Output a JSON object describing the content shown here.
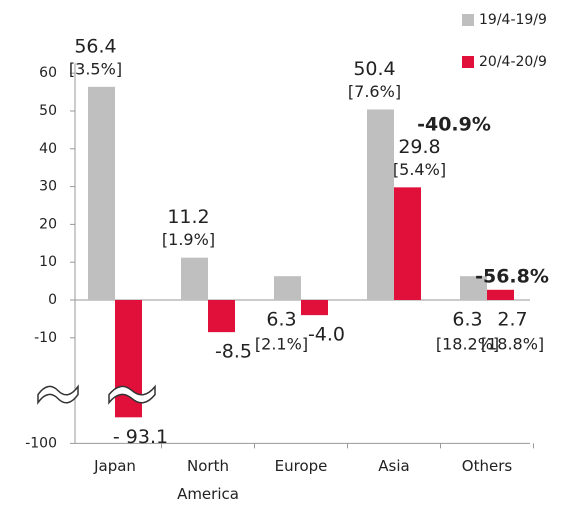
{
  "chart_data": {
    "type": "bar",
    "categories": [
      "Japan",
      "North America",
      "Europe",
      "Asia",
      "Others"
    ],
    "series": [
      {
        "name": "19/4-19/9",
        "color": "#bfbfbf",
        "values": [
          56.4,
          11.2,
          6.3,
          50.4,
          6.3
        ],
        "share_labels": [
          "[3.5%]",
          "[1.9%]",
          "[2.1%]",
          "[7.6%]",
          "[18.2%]"
        ]
      },
      {
        "name": "20/4-20/9",
        "color": "#e0103a",
        "values": [
          -93.1,
          -8.5,
          -4.0,
          29.8,
          2.7
        ],
        "value_labels": [
          "- 93.1",
          "-8.5",
          "-4.0",
          "29.8",
          "2.7"
        ],
        "share_labels": [
          null,
          null,
          null,
          "[5.4%]",
          "[18.8%]"
        ]
      }
    ],
    "annotations": [
      {
        "category": "Asia",
        "text": "-40.9%"
      },
      {
        "category": "Others",
        "text": "-56.8%"
      }
    ],
    "ylim": [
      -100,
      60
    ],
    "yticks": [
      60,
      50,
      40,
      30,
      20,
      10,
      0,
      -10,
      -100
    ],
    "axis_break": [
      -20,
      -90
    ],
    "legend": "top-right"
  }
}
